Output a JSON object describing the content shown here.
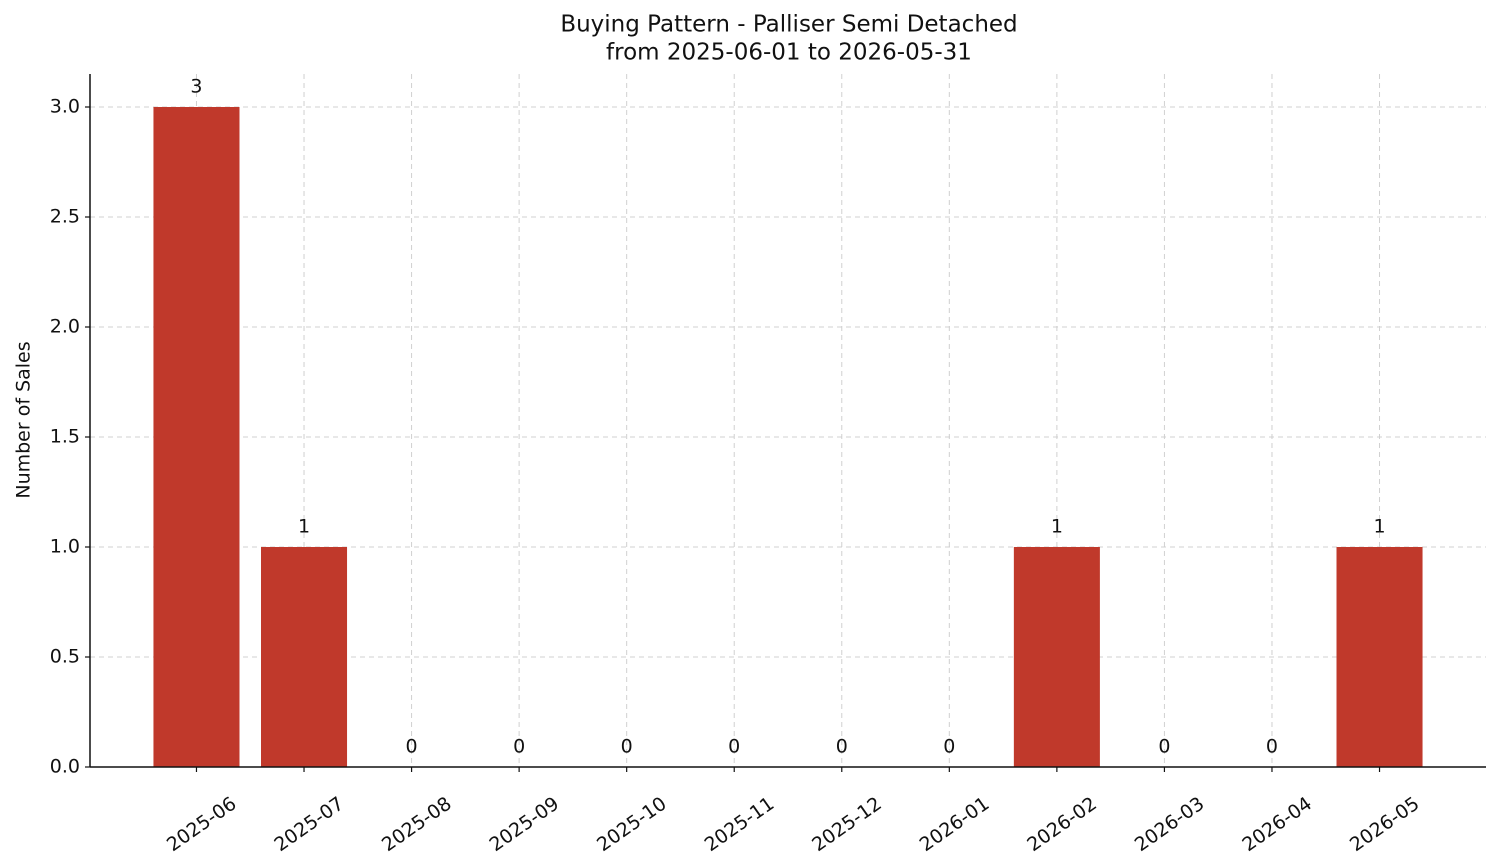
{
  "chart_data": {
    "type": "bar",
    "title": "Buying Pattern - Palliser Semi Detached",
    "subtitle": "from 2025-06-01 to 2026-05-31",
    "y_label": "Number of Sales",
    "categories": [
      "2025-06",
      "2025-07",
      "2025-08",
      "2025-09",
      "2025-10",
      "2025-11",
      "2025-12",
      "2026-01",
      "2026-02",
      "2026-03",
      "2026-04",
      "2026-05"
    ],
    "values": [
      3,
      1,
      0,
      0,
      0,
      0,
      0,
      0,
      1,
      0,
      0,
      1
    ],
    "color": "#c0392b",
    "ylim": [
      0,
      3.15
    ],
    "yticks": [
      {
        "value": 0,
        "label": "0.0"
      },
      0.5,
      {
        "value": 1,
        "label": "1.0"
      },
      1.5,
      {
        "value": 2,
        "label": "2.0"
      },
      2.5,
      {
        "value": 3,
        "label": "3.0"
      }
    ],
    "grid": true
  }
}
